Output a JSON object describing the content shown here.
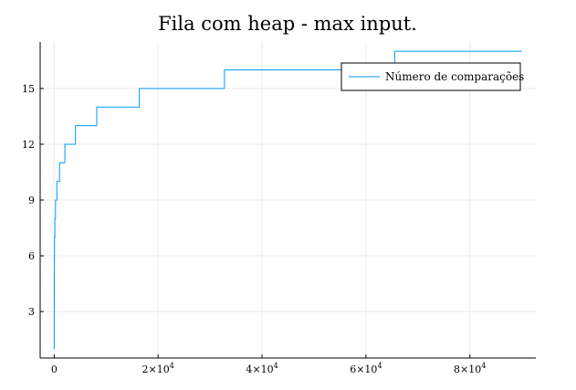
{
  "chart_data": {
    "type": "line",
    "step": true,
    "title": "Fila com heap - max input.",
    "xlabel": "",
    "ylabel": "",
    "xlim": [
      -2700,
      92700
    ],
    "ylim": [
      0.5,
      17.5
    ],
    "x_ticks": [
      {
        "value": 0,
        "label": "0",
        "exp": ""
      },
      {
        "value": 20000,
        "label": "2×10",
        "exp": "4"
      },
      {
        "value": 40000,
        "label": "4×10",
        "exp": "4"
      },
      {
        "value": 60000,
        "label": "6×10",
        "exp": "4"
      },
      {
        "value": 80000,
        "label": "8×10",
        "exp": "4"
      }
    ],
    "y_ticks": [
      {
        "value": 3,
        "label": "3"
      },
      {
        "value": 6,
        "label": "6"
      },
      {
        "value": 9,
        "label": "9"
      },
      {
        "value": 12,
        "label": "12"
      },
      {
        "value": 15,
        "label": "15"
      }
    ],
    "grid": true,
    "legend_position": "top-right",
    "series": [
      {
        "name": "Número de comparações",
        "color": "#009af9",
        "points": [
          [
            1,
            1
          ],
          [
            2,
            2
          ],
          [
            4,
            3
          ],
          [
            8,
            4
          ],
          [
            16,
            5
          ],
          [
            32,
            6
          ],
          [
            64,
            7
          ],
          [
            128,
            8
          ],
          [
            256,
            9
          ],
          [
            512,
            10
          ],
          [
            1024,
            11
          ],
          [
            2048,
            12
          ],
          [
            4096,
            13
          ],
          [
            8192,
            14
          ],
          [
            16384,
            15
          ],
          [
            32768,
            16
          ],
          [
            65536,
            17
          ],
          [
            90000,
            17
          ]
        ]
      }
    ]
  }
}
